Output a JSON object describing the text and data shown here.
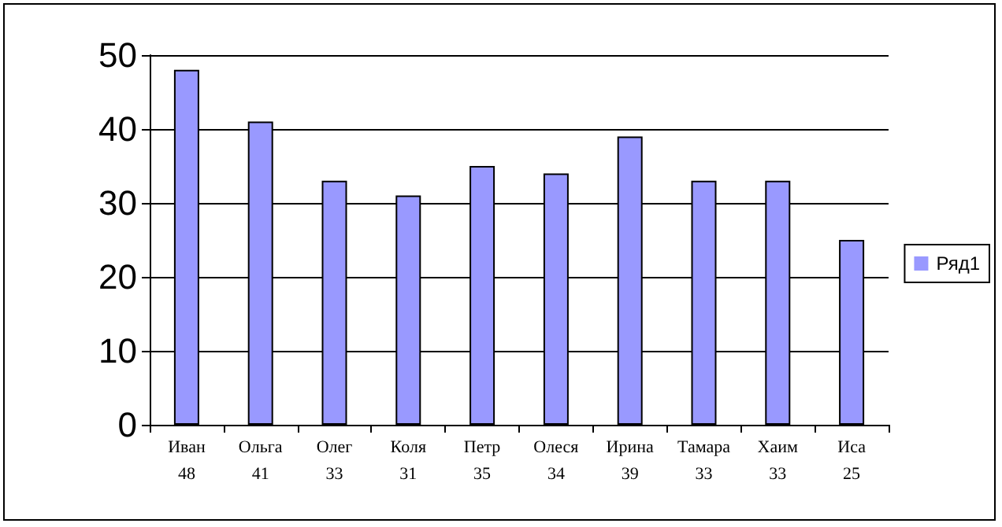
{
  "chart_data": {
    "type": "bar",
    "categories": [
      "Иван",
      "Ольга",
      "Олег",
      "Коля",
      "Петр",
      "Олеся",
      "Ирина",
      "Тамара",
      "Хаим",
      "Иса"
    ],
    "series": [
      {
        "name": "Ряд1",
        "color": "#9999ff",
        "values": [
          48,
          41,
          33,
          31,
          35,
          34,
          39,
          33,
          33,
          25
        ]
      }
    ],
    "ylim": [
      0,
      50
    ],
    "yticks": [
      0,
      10,
      20,
      30,
      40,
      50
    ],
    "grid": "y",
    "legend": "right",
    "data_labels": true
  }
}
